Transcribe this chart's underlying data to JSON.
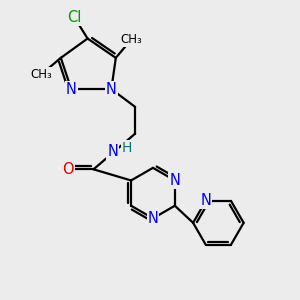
{
  "bg_color": "#ececec",
  "bond_color": "#000000",
  "bond_width": 1.6,
  "dbo": 0.1,
  "figsize": [
    3.0,
    3.0
  ],
  "dpi": 100,
  "colors": {
    "Cl": "#009900",
    "N": "#0000ee",
    "O": "#dd0000",
    "H": "#007777",
    "C": "#000000"
  },
  "fontsize": 10.5
}
